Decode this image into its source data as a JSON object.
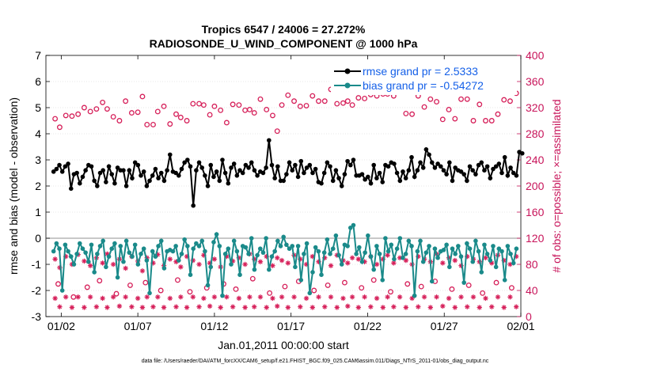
{
  "colors": {
    "rmse": "#000000",
    "bias": "#1a8a8a",
    "obs_possible": "#d6205a",
    "obs_assimilated": "#d6205a",
    "right_axis": "#c8145a",
    "legend_text": "#1560e8",
    "zero_line": "#a8a8a8"
  },
  "chart_data": {
    "type": "line",
    "title_line1": "Tropics 6547 / 24006 = 27.272%",
    "title_line2": "RADIOSONDE_U_WIND_COMPONENT @ 1000 hPa",
    "xlabel": "Jan.01,2011 00:00:00 start",
    "ylabel_left": "rmse and bias (model - observation)",
    "ylabel_right": "# of obs: o=possible; ×=assimilated",
    "footnote": "data file: /Users/raeder/DAI/ATM_forcXX/CAM6_setup/f.e21.FHIST_BGC.f09_025.CAM6assim.011/Diags_NTrS_2011-01/obs_diag_output.nc",
    "xlim": [
      0,
      31
    ],
    "ylim_left": [
      -3,
      7
    ],
    "ylim_right": [
      0,
      400
    ],
    "x_ticks": [
      1,
      6,
      11,
      16,
      21,
      26,
      31
    ],
    "x_tick_labels": [
      "01/02",
      "01/07",
      "01/12",
      "01/17",
      "01/22",
      "01/27",
      "02/01"
    ],
    "y_ticks_left": [
      -3,
      -2,
      -1,
      0,
      1,
      2,
      3,
      4,
      5,
      6,
      7
    ],
    "y_tick_labels_left": [
      "-3",
      "-2",
      "-1",
      "0",
      "1",
      "2",
      "3",
      "4",
      "5",
      "6",
      "7"
    ],
    "y_ticks_right": [
      0,
      40,
      80,
      120,
      160,
      200,
      240,
      280,
      320,
      360,
      400
    ],
    "y_tick_labels_right": [
      "0",
      "40",
      "80",
      "120",
      "160",
      "200",
      "240",
      "280",
      "320",
      "360",
      "400"
    ],
    "legend": [
      {
        "name": "rmse grand pr = 2.5333",
        "series": "rmse"
      },
      {
        "name": "bias grand pr = -0.54272",
        "series": "bias"
      }
    ],
    "series": [
      {
        "name": "rmse",
        "values": [
          2.55,
          2.65,
          2.8,
          2.55,
          2.75,
          2.85,
          1.9,
          2.45,
          2.5,
          2.1,
          2.35,
          2.6,
          2.8,
          2.75,
          2.2,
          2.0,
          2.5,
          2.6,
          2.15,
          2.75,
          2.45,
          2.1,
          2.7,
          2.6,
          2.6,
          2.0,
          2.6,
          2.3,
          2.9,
          2.8,
          2.4,
          2.55,
          2.0,
          2.2,
          2.4,
          2.65,
          2.3,
          2.5,
          2.2,
          2.6,
          3.2,
          2.55,
          2.5,
          2.4,
          2.65,
          2.9,
          3.0,
          2.75,
          1.25,
          2.6,
          2.9,
          2.7,
          2.4,
          2.0,
          2.8,
          2.35,
          2.55,
          2.2,
          3.0,
          2.5,
          2.1,
          2.7,
          2.85,
          2.4,
          2.6,
          2.5,
          2.8,
          2.7,
          2.9,
          2.6,
          2.4,
          2.55,
          2.5,
          2.7,
          3.75,
          2.8,
          2.3,
          2.75,
          2.2,
          2.2,
          2.45,
          2.9,
          2.6,
          2.8,
          2.35,
          2.95,
          2.5,
          2.7,
          2.8,
          2.5,
          2.65,
          2.15,
          2.1,
          2.5,
          2.9,
          2.75,
          2.2,
          2.6,
          2.3,
          2.0,
          2.45,
          2.95,
          2.8,
          3.0,
          2.4,
          2.4,
          2.45,
          2.25,
          2.35,
          2.1,
          2.8,
          2.3,
          2.5,
          2.15,
          2.8,
          2.75,
          2.9,
          2.85,
          2.5,
          2.2,
          2.55,
          2.3,
          2.6,
          3.1,
          2.35,
          2.6,
          2.9,
          2.7,
          3.4,
          3.2,
          2.9,
          2.7,
          2.85,
          2.75,
          2.6,
          2.45,
          2.9,
          2.2,
          2.7,
          2.6,
          2.55,
          2.45,
          2.2,
          2.75,
          2.6,
          2.45,
          2.8,
          2.9,
          2.6,
          2.75,
          2.3,
          2.65,
          2.75,
          2.85,
          2.5,
          3.1,
          2.4,
          2.7,
          2.5,
          2.4,
          3.3,
          3.25
        ],
        "x_start": 0.5,
        "x_step": 0.19
      },
      {
        "name": "bias",
        "values": [
          -0.5,
          -0.2,
          -0.4,
          -2.0,
          -0.25,
          -0.5,
          -0.7,
          -1.0,
          -0.6,
          -0.2,
          -0.4,
          -0.55,
          -0.9,
          -0.25,
          -1.3,
          -0.6,
          -0.3,
          -0.1,
          -1.1,
          -0.7,
          -0.4,
          -0.2,
          -1.5,
          -0.3,
          -0.9,
          -0.1,
          -0.55,
          -0.7,
          -0.25,
          -1.0,
          -0.6,
          -0.4,
          -0.85,
          -2.1,
          -0.5,
          -0.7,
          -0.3,
          -0.1,
          -1.15,
          -0.5,
          -0.45,
          -0.5,
          -0.3,
          -0.85,
          -0.6,
          -0.05,
          -0.3,
          -1.4,
          -0.4,
          -0.2,
          -0.3,
          -0.1,
          -0.5,
          -1.8,
          -1.1,
          -0.15,
          0.15,
          -0.3,
          -2.2,
          -0.6,
          -0.4,
          -1.0,
          -0.1,
          -0.5,
          -1.4,
          -0.3,
          -0.35,
          -0.6,
          0.0,
          -1.2,
          -0.65,
          -0.4,
          -0.55,
          0.0,
          -1.2,
          -0.7,
          -0.5,
          -0.1,
          -0.3,
          0.05,
          -0.25,
          -0.4,
          -0.3,
          -1.1,
          -0.3,
          -1.6,
          -0.6,
          -0.2,
          -2.1,
          -1.3,
          -0.35,
          -0.5,
          -1.4,
          -0.55,
          -0.05,
          -0.6,
          -0.4,
          0.1,
          -0.65,
          -1.0,
          -0.25,
          -0.3,
          0.4,
          0.5,
          -0.6,
          -0.35,
          -0.9,
          -0.55,
          0.1,
          -0.7,
          -1.2,
          -0.3,
          -0.6,
          -1.6,
          0.0,
          -0.5,
          -0.25,
          -0.8,
          -0.4,
          0.0,
          -0.75,
          -0.6,
          -0.1,
          -0.3,
          -2.2,
          -0.5,
          -0.1,
          -0.9,
          -0.55,
          -0.3,
          -1.65,
          -0.4,
          -0.75,
          -0.5,
          -0.45,
          -0.25,
          -1.1,
          -0.4,
          -0.6,
          -0.3,
          -0.7,
          -1.7,
          -0.2,
          -0.4,
          -0.9,
          -0.1,
          -0.5,
          -1.3,
          -0.25,
          -0.6,
          -0.85,
          -0.3,
          -1.1,
          -0.4,
          -0.5,
          -1.6,
          -0.3,
          -0.6,
          -0.95,
          -0.4
        ],
        "x_start": 0.5,
        "x_step": 0.19
      }
    ],
    "obs_possible": {
      "x": [
        0.6,
        0.9,
        1.3,
        1.7,
        2.1,
        2.5,
        2.9,
        3.3,
        3.7,
        4.0,
        4.4,
        4.8,
        5.2,
        5.6,
        6.0,
        6.3,
        6.6,
        7.0,
        7.3,
        7.7,
        8.1,
        8.5,
        8.8,
        9.2,
        9.6,
        10.0,
        10.3,
        10.7,
        11.0,
        11.4,
        11.8,
        12.2,
        12.6,
        13.0,
        13.3,
        13.6,
        14.0,
        14.4,
        14.8,
        15.1,
        15.4,
        15.8,
        16.2,
        16.6,
        17.0,
        17.4,
        17.8,
        18.2,
        18.6,
        19.0,
        19.4,
        19.7,
        20.0,
        20.4,
        20.8,
        21.2,
        21.6,
        22.0,
        22.3,
        22.7,
        23.1,
        23.5,
        23.9,
        24.3,
        24.7,
        25.1,
        25.5,
        25.9,
        26.3,
        26.7,
        27.1,
        27.5,
        27.9,
        28.3,
        28.7,
        29.1,
        29.5,
        29.9,
        30.3,
        30.7
      ],
      "y": [
        303,
        290,
        308,
        307,
        310,
        320,
        314,
        318,
        328,
        318,
        306,
        300,
        330,
        312,
        313,
        337,
        294,
        294,
        314,
        322,
        295,
        310,
        305,
        300,
        326,
        326,
        324,
        309,
        322,
        316,
        297,
        325,
        324,
        316,
        317,
        312,
        333,
        317,
        308,
        284,
        324,
        339,
        330,
        322,
        323,
        338,
        330,
        330,
        348,
        326,
        327,
        330,
        324,
        335,
        334,
        340,
        338,
        341,
        341,
        338,
        347,
        311,
        310,
        338,
        321,
        333,
        329,
        302,
        317,
        303,
        333,
        333,
        300,
        325,
        300,
        300,
        310,
        332,
        330,
        342
      ]
    },
    "obs_assimilated": {
      "x": [
        0.6,
        0.9,
        1.3,
        1.7,
        2.1,
        2.5,
        2.9,
        3.3,
        3.7,
        4.0,
        4.4,
        4.8,
        5.2,
        5.6,
        6.0,
        6.3,
        6.6,
        7.0,
        7.3,
        7.7,
        8.1,
        8.5,
        8.8,
        9.2,
        9.6,
        10.0,
        10.3,
        10.7,
        11.0,
        11.4,
        11.8,
        12.2,
        12.6,
        13.0,
        13.3,
        13.6,
        14.0,
        14.4,
        14.8,
        15.1,
        15.4,
        15.8,
        16.2,
        16.6,
        17.0,
        17.4,
        17.8,
        18.2,
        18.6,
        19.0,
        19.4,
        19.7,
        20.0,
        20.4,
        20.8,
        21.2,
        21.6,
        22.0,
        22.3,
        22.7,
        23.1,
        23.5,
        23.9,
        24.3,
        24.7,
        25.1,
        25.5,
        25.9,
        26.3,
        26.7,
        27.1,
        27.5,
        27.9,
        28.3,
        28.7,
        29.1,
        29.5,
        29.9,
        30.3,
        30.7
      ],
      "y": [
        28,
        15,
        30,
        14,
        30,
        14,
        30,
        15,
        28,
        14,
        30,
        16,
        30,
        15,
        28,
        14,
        30,
        15,
        30,
        14,
        28,
        15,
        30,
        14,
        30,
        15,
        28,
        16,
        30,
        14,
        30,
        15,
        28,
        14,
        30,
        15,
        30,
        14,
        28,
        16,
        30,
        14,
        30,
        15,
        28,
        14,
        30,
        15,
        30,
        14,
        28,
        16,
        30,
        14,
        30,
        15,
        28,
        14,
        30,
        15,
        30,
        14,
        28,
        15,
        30,
        14,
        30,
        16,
        28,
        14,
        30,
        15,
        30,
        14,
        28,
        15,
        30,
        14,
        30,
        15
      ]
    },
    "obs_assimilated_upper": {
      "x": [
        0.6,
        0.9,
        1.3,
        1.7,
        2.1,
        2.5,
        2.9,
        3.3,
        3.7,
        4.0,
        4.4,
        4.8,
        5.2,
        5.6,
        6.0,
        6.3,
        6.6,
        7.0,
        7.3,
        7.7,
        8.1,
        8.5,
        8.8,
        9.2,
        9.6,
        10.0,
        10.3,
        10.7,
        11.0,
        11.4,
        11.8,
        12.2,
        12.6,
        13.0,
        13.3,
        13.6,
        14.0,
        14.4,
        14.8,
        15.1,
        15.4,
        15.8,
        16.2,
        16.6,
        17.0,
        17.4,
        17.8,
        18.2,
        18.6,
        19.0,
        19.4,
        19.7,
        20.0,
        20.4,
        20.8,
        21.2,
        21.6,
        22.0,
        22.3,
        22.7,
        23.1,
        23.5,
        23.9,
        24.3,
        24.7,
        25.1,
        25.5,
        25.9,
        26.3,
        26.7,
        27.1,
        27.5,
        27.9,
        28.3,
        28.7,
        29.1,
        29.5,
        29.9,
        30.3,
        30.7
      ],
      "y": [
        88,
        75,
        92,
        80,
        95,
        85,
        78,
        90,
        82,
        96,
        80,
        88,
        74,
        92,
        85,
        70,
        90,
        82,
        95,
        78,
        88,
        84,
        76,
        92,
        86,
        80,
        94,
        82,
        88,
        76,
        92,
        85,
        90,
        80,
        96,
        88,
        84,
        92,
        78,
        90,
        86,
        82,
        94,
        88,
        80,
        92,
        84,
        90,
        78,
        94,
        86,
        82,
        90,
        88,
        84,
        92,
        80,
        88,
        94,
        82,
        90,
        86,
        80,
        92,
        88,
        84,
        96,
        82,
        90,
        86,
        78,
        92,
        88,
        84,
        90,
        82,
        94,
        86,
        80,
        92
      ]
    },
    "obs_possible_lower": {
      "x": [
        0.8,
        1.8,
        2.7,
        3.5,
        4.6,
        5.5,
        6.5,
        7.5,
        8.6,
        9.4,
        10.5,
        11.6,
        12.4,
        13.5,
        14.6,
        15.6,
        16.5,
        17.5,
        18.4,
        19.5,
        20.6,
        21.4,
        22.5,
        23.6,
        24.5,
        25.4,
        26.5,
        27.6,
        28.5,
        29.4,
        30.4
      ],
      "y": [
        50,
        30,
        45,
        55,
        35,
        48,
        52,
        40,
        56,
        38,
        44,
        50,
        42,
        58,
        36,
        46,
        54,
        40,
        48,
        52,
        44,
        56,
        38,
        50,
        46,
        54,
        42,
        48,
        36,
        52,
        44
      ]
    }
  }
}
